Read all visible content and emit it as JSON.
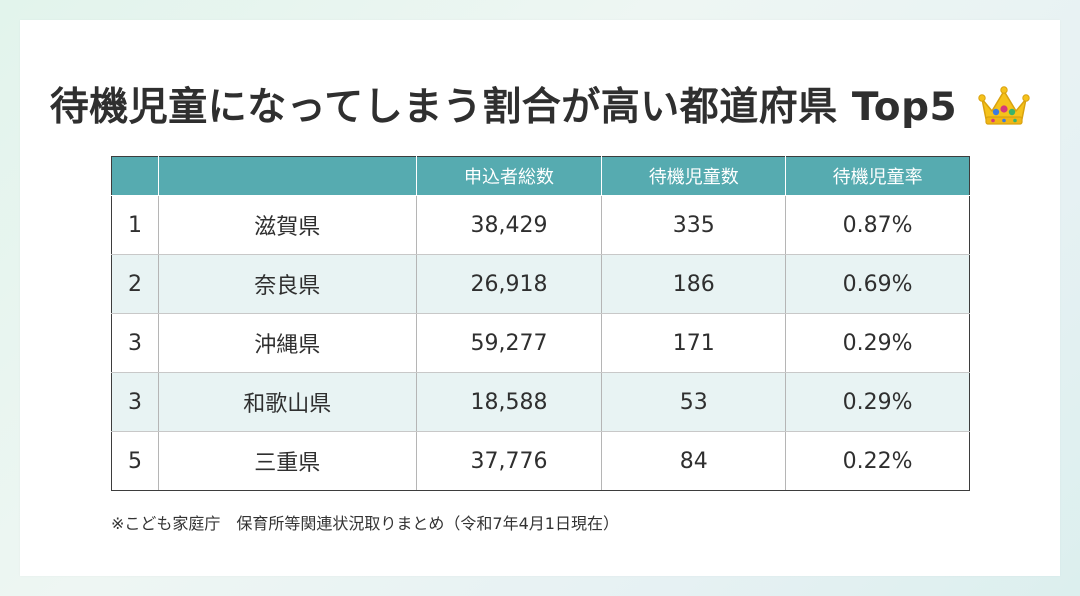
{
  "title": "待機児童になってしまう割合が高い都道府県 Top5",
  "title_icon": "crown-icon",
  "colors": {
    "header_bg": "#56abb0",
    "stripe_bg": "#e8f3f3"
  },
  "table": {
    "headers": [
      "",
      "",
      "申込者総数",
      "待機児童数",
      "待機児童率"
    ],
    "rows": [
      [
        "1",
        "滋賀県",
        "38,429",
        "335",
        "0.87%"
      ],
      [
        "2",
        "奈良県",
        "26,918",
        "186",
        "0.69%"
      ],
      [
        "3",
        "沖縄県",
        "59,277",
        "171",
        "0.29%"
      ],
      [
        "3",
        "和歌山県",
        "18,588",
        "53",
        "0.29%"
      ],
      [
        "5",
        "三重県",
        "37,776",
        "84",
        "0.22%"
      ]
    ]
  },
  "footnote": "※こども家庭庁　保育所等関連状況取りまとめ（令和7年4月1日現在）"
}
